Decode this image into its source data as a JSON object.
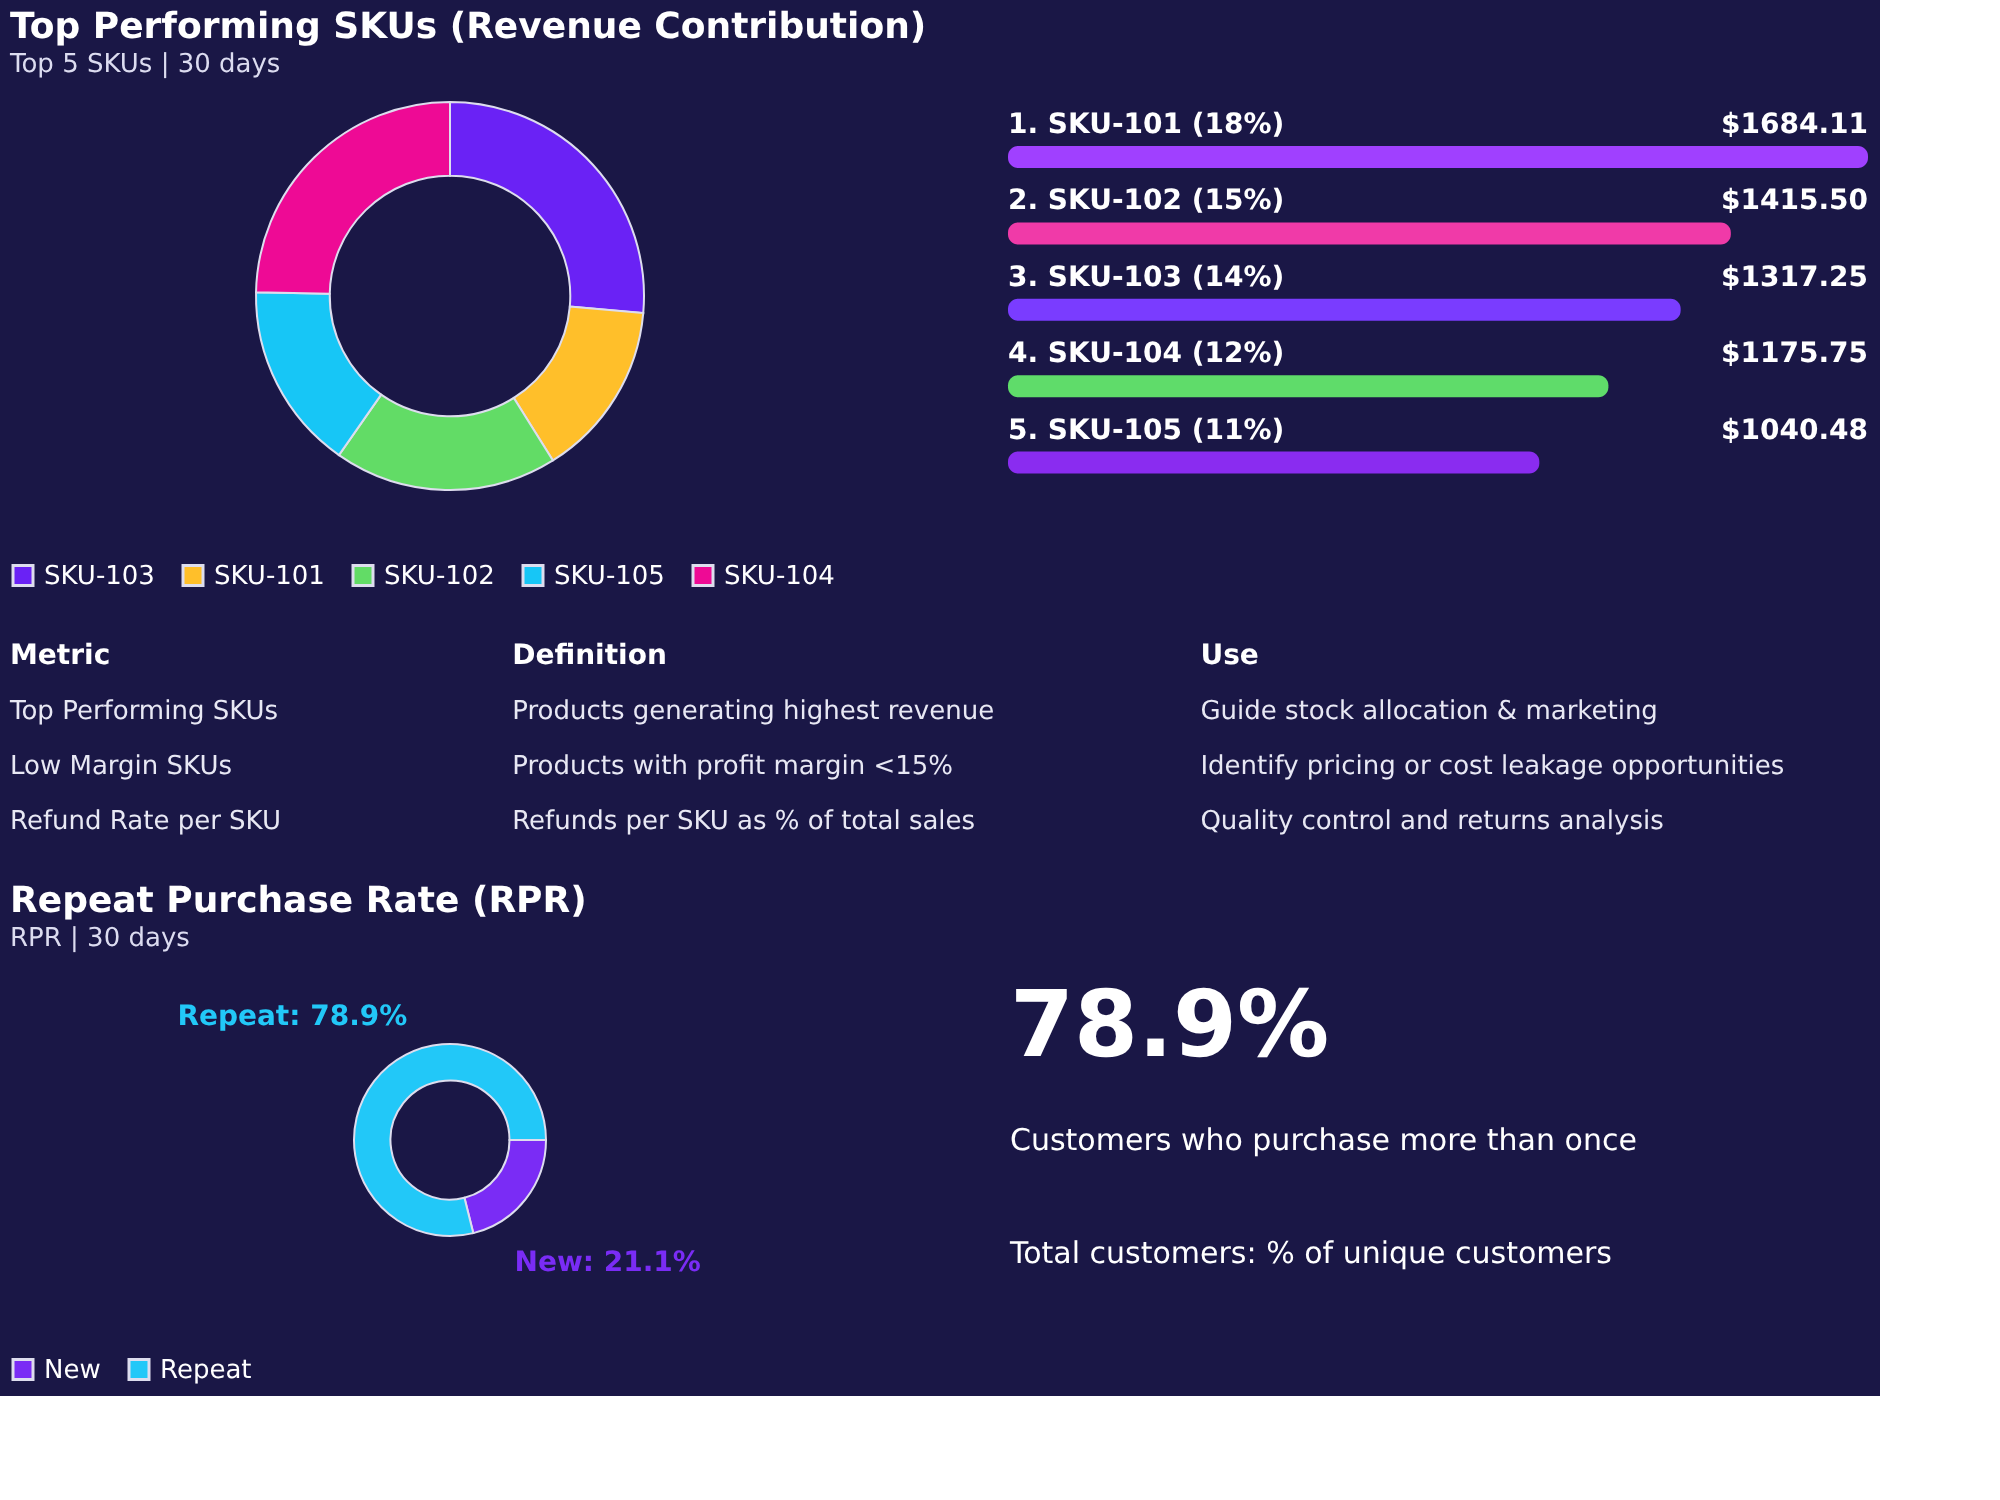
{
  "chart_data": [
    {
      "type": "donut",
      "title": "Top Performing SKUs (Revenue Contribution)",
      "subtitle": "Top 5 SKUs | 30 days",
      "categories": [
        "SKU-103",
        "SKU-101",
        "SKU-102",
        "SKU-105",
        "SKU-104"
      ],
      "values": [
        26.4,
        14.7,
        18.6,
        15.6,
        24.7
      ],
      "colors": [
        "#6a22f5",
        "#ffbf2a",
        "#62dc66",
        "#17c6f6",
        "#ee0a95"
      ],
      "legend": "bottom"
    },
    {
      "type": "bar",
      "orientation": "horizontal",
      "categories": [
        "1. SKU-101 (18%)",
        "2. SKU-102 (15%)",
        "3. SKU-103 (14%)",
        "4. SKU-104 (12%)",
        "5. SKU-105 (11%)"
      ],
      "values": [
        1684.11,
        1415.5,
        1317.25,
        1175.75,
        1040.48
      ],
      "value_labels": [
        "$1684.11",
        "$1415.50",
        "$1317.25",
        "$1175.75",
        "$1040.48"
      ],
      "colors": [
        "#a040ff",
        "#f03aa8",
        "#7a3cff",
        "#5fdc6a",
        "#8a2cf0"
      ]
    },
    {
      "type": "other",
      "annotations": [
        "Metric",
        "Definition",
        "Use",
        "Top Performing SKUs",
        "Products generating highest revenue",
        "Guide stock allocation & marketing",
        "Low Margin SKUs",
        "Products with profit margin <15%",
        "Identify pricing or cost leakage opportunities",
        "Refund Rate per SKU",
        "Refunds per SKU as % of total sales",
        "Quality control and returns analysis"
      ]
    },
    {
      "type": "donut",
      "title": "Repeat Purchase Rate (RPR)",
      "subtitle": "RPR | 30 days",
      "categories": [
        "New",
        "Repeat"
      ],
      "values": [
        21.1,
        78.9
      ],
      "colors": [
        "#7a2cf5",
        "#22c8f8"
      ],
      "value_labels": [
        "New: 21.1%",
        "Repeat: 78.9%"
      ],
      "legend": "bottom"
    },
    {
      "type": "other",
      "annotations": [
        "78.9%",
        "Customers who purchase more than once",
        "Total customers: % of unique customers"
      ]
    }
  ]
}
